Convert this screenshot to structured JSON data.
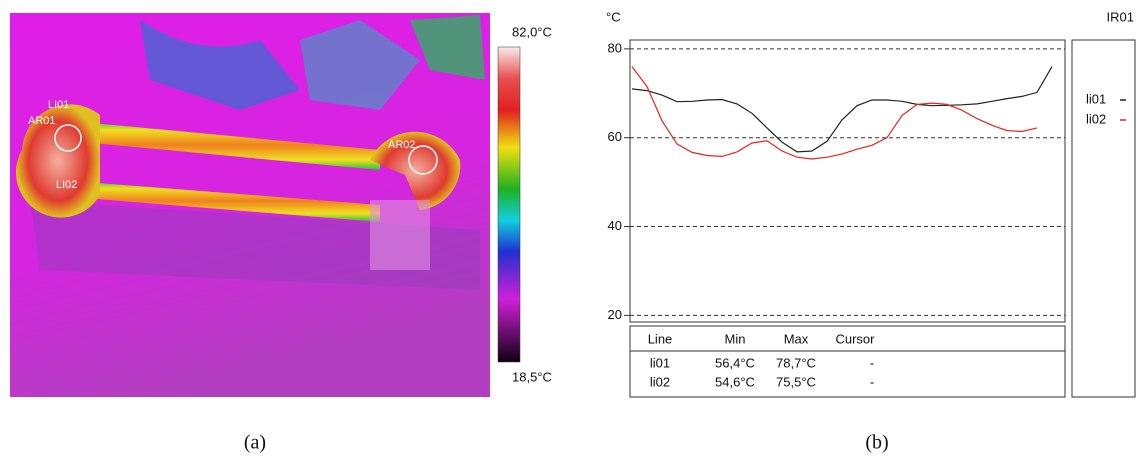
{
  "image": {
    "labels": [
      "LI01",
      "AR01",
      "LI02",
      "AR02"
    ],
    "scale_max": "82,0°C",
    "scale_min": "18,5°C"
  },
  "captions": [
    "(a)",
    "(b)"
  ],
  "chart_data": {
    "type": "line",
    "title": "IR01",
    "y_label": "°C",
    "x": [
      0,
      15,
      30,
      45,
      60,
      75,
      90,
      105,
      120,
      135,
      150,
      165,
      180,
      195,
      210,
      225,
      240,
      255,
      270,
      285,
      300,
      315,
      330,
      345,
      360,
      375,
      390,
      405,
      420
    ],
    "xlim": [
      0,
      430
    ],
    "ylim": [
      18.5,
      82
    ],
    "yticks": [
      20,
      40,
      60,
      80
    ],
    "grid": true,
    "legend": "right",
    "series": [
      {
        "name": "li01",
        "color": "#222222",
        "values": [
          71,
          70.6,
          69.6,
          68.1,
          68.2,
          68.5,
          68.6,
          67.6,
          65.5,
          62.2,
          59,
          56.8,
          57,
          59.2,
          64,
          67.2,
          68.5,
          68.5,
          68.2,
          67.5,
          67.2,
          67.3,
          67.4,
          67.6,
          68.2,
          68.8,
          69.3,
          70.2,
          76
        ]
      },
      {
        "name": "li02",
        "color": "#e8251c",
        "values": [
          76,
          71.5,
          63.8,
          58.6,
          56.7,
          56,
          55.8,
          56.8,
          58.8,
          59.3,
          57,
          55.6,
          55.2,
          55.6,
          56.3,
          57.4,
          58.3,
          60,
          65,
          67.5,
          67.8,
          67.5,
          66.2,
          64.3,
          62.8,
          61.6,
          61.4,
          62.2,
          null
        ]
      }
    ],
    "table": {
      "header": [
        "Line",
        "Min",
        "Max",
        "Cursor"
      ],
      "rows": [
        [
          "li01",
          "56,4°C",
          "78,7°C",
          "-"
        ],
        [
          "li02",
          "54,6°C",
          "75,5°C",
          "-"
        ]
      ]
    }
  }
}
